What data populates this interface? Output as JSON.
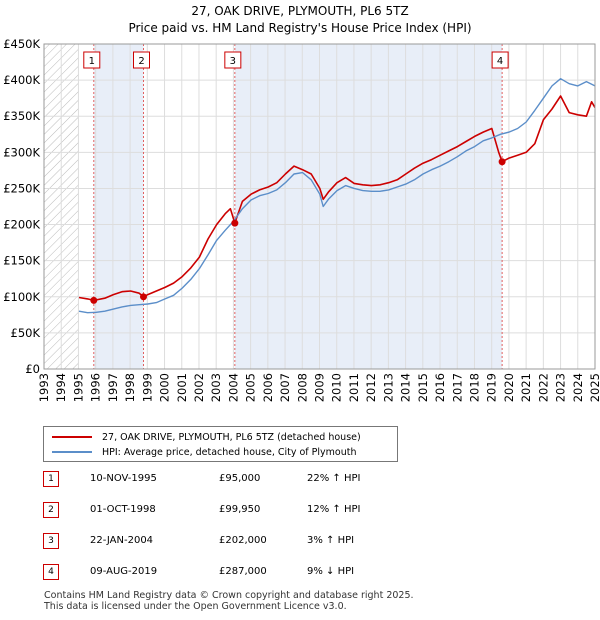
{
  "chart_data": {
    "type": "line",
    "title": "27, OAK DRIVE, PLYMOUTH, PL6 5TZ",
    "subtitle": "Price paid vs. HM Land Registry's House Price Index (HPI)",
    "xlim": [
      1993,
      2025
    ],
    "ylim": [
      0,
      450000
    ],
    "x_ticks": [
      "1993",
      "1994",
      "1995",
      "1996",
      "1997",
      "1998",
      "1999",
      "2000",
      "2001",
      "2002",
      "2003",
      "2004",
      "2005",
      "2006",
      "2007",
      "2008",
      "2009",
      "2010",
      "2011",
      "2012",
      "2013",
      "2014",
      "2015",
      "2016",
      "2017",
      "2018",
      "2019",
      "2020",
      "2021",
      "2022",
      "2023",
      "2024",
      "2025"
    ],
    "y_ticks": [
      {
        "value": 0,
        "label": "£0"
      },
      {
        "value": 50000,
        "label": "£50K"
      },
      {
        "value": 100000,
        "label": "£100K"
      },
      {
        "value": 150000,
        "label": "£150K"
      },
      {
        "value": 200000,
        "label": "£200K"
      },
      {
        "value": 250000,
        "label": "£250K"
      },
      {
        "value": 300000,
        "label": "£300K"
      },
      {
        "value": 350000,
        "label": "£350K"
      },
      {
        "value": 400000,
        "label": "£400K"
      },
      {
        "value": 450000,
        "label": "£450K"
      }
    ],
    "hatched_range": [
      1993,
      1995
    ],
    "shaded_ranges": [
      [
        1995.86,
        1998.75
      ],
      [
        2004.06,
        2019.6
      ]
    ],
    "series": [
      {
        "name": "27, OAK DRIVE, PLYMOUTH, PL6 5TZ (detached house)",
        "color": "#cc0000",
        "x": [
          1995.0,
          1995.5,
          1995.86,
          1996.5,
          1997.0,
          1997.5,
          1998.0,
          1998.5,
          1998.75,
          1999.0,
          1999.5,
          2000.0,
          2000.5,
          2001.0,
          2001.5,
          2002.0,
          2002.5,
          2003.0,
          2003.5,
          2003.8,
          2004.06,
          2004.5,
          2005.0,
          2005.5,
          2006.0,
          2006.5,
          2007.0,
          2007.5,
          2008.0,
          2008.5,
          2009.0,
          2009.2,
          2009.5,
          2010.0,
          2010.5,
          2011.0,
          2011.5,
          2012.0,
          2012.5,
          2013.0,
          2013.5,
          2014.0,
          2014.5,
          2015.0,
          2015.5,
          2016.0,
          2016.5,
          2017.0,
          2017.5,
          2018.0,
          2018.5,
          2019.0,
          2019.4,
          2019.6,
          2020.0,
          2020.5,
          2021.0,
          2021.5,
          2022.0,
          2022.5,
          2023.0,
          2023.5,
          2024.0,
          2024.5,
          2024.8,
          2025.0
        ],
        "values": [
          99000,
          97000,
          95000,
          98000,
          103000,
          107000,
          108000,
          105000,
          99950,
          103000,
          108000,
          113000,
          119000,
          128000,
          140000,
          155000,
          180000,
          200000,
          215000,
          222000,
          202000,
          232000,
          242000,
          248000,
          252000,
          258000,
          270000,
          281000,
          276000,
          270000,
          250000,
          235000,
          245000,
          258000,
          265000,
          257000,
          255000,
          254000,
          255000,
          258000,
          262000,
          270000,
          278000,
          285000,
          290000,
          296000,
          302000,
          308000,
          315000,
          322000,
          328000,
          333000,
          300000,
          287000,
          292000,
          296000,
          300000,
          312000,
          345000,
          360000,
          378000,
          355000,
          352000,
          350000,
          370000,
          362000
        ]
      },
      {
        "name": "HPI: Average price, detached house, City of Plymouth",
        "color": "#5b8ec9",
        "x": [
          1995.0,
          1995.5,
          1996.0,
          1996.5,
          1997.0,
          1997.5,
          1998.0,
          1998.5,
          1999.0,
          1999.5,
          2000.0,
          2000.5,
          2001.0,
          2001.5,
          2002.0,
          2002.5,
          2003.0,
          2003.5,
          2004.0,
          2004.5,
          2005.0,
          2005.5,
          2006.0,
          2006.5,
          2007.0,
          2007.5,
          2008.0,
          2008.5,
          2009.0,
          2009.2,
          2009.5,
          2010.0,
          2010.5,
          2011.0,
          2011.5,
          2012.0,
          2012.5,
          2013.0,
          2013.5,
          2014.0,
          2014.5,
          2015.0,
          2015.5,
          2016.0,
          2016.5,
          2017.0,
          2017.5,
          2018.0,
          2018.5,
          2019.0,
          2019.5,
          2020.0,
          2020.5,
          2021.0,
          2021.5,
          2022.0,
          2022.5,
          2023.0,
          2023.5,
          2024.0,
          2024.5,
          2025.0
        ],
        "values": [
          80000,
          78000,
          78500,
          80000,
          83000,
          86000,
          88000,
          89000,
          90000,
          92000,
          97000,
          102000,
          112000,
          124000,
          139000,
          158000,
          178000,
          192000,
          205000,
          222000,
          234000,
          240000,
          243000,
          248000,
          258000,
          270000,
          272000,
          262000,
          242000,
          225000,
          235000,
          247000,
          254000,
          250000,
          247000,
          246000,
          246000,
          248000,
          252000,
          256000,
          262000,
          270000,
          276000,
          281000,
          287000,
          294000,
          302000,
          308000,
          316000,
          320000,
          325000,
          328000,
          333000,
          342000,
          358000,
          375000,
          392000,
          402000,
          395000,
          392000,
          398000,
          392000
        ]
      }
    ],
    "sales": [
      {
        "label": "1",
        "x": 1995.86,
        "value": 95000,
        "date": "10-NOV-1995",
        "price": "£95,000",
        "hpi_diff": "22% ↑ HPI"
      },
      {
        "label": "2",
        "x": 1998.75,
        "value": 99950,
        "date": "01-OCT-1998",
        "price": "£99,950",
        "hpi_diff": "12% ↑ HPI"
      },
      {
        "label": "3",
        "x": 2004.06,
        "value": 202000,
        "date": "22-JAN-2004",
        "price": "£202,000",
        "hpi_diff": "3% ↑ HPI"
      },
      {
        "label": "4",
        "x": 2019.6,
        "value": 287000,
        "date": "09-AUG-2019",
        "price": "£287,000",
        "hpi_diff": "9% ↓ HPI"
      }
    ]
  },
  "legend": {
    "property_label": "27, OAK DRIVE, PLYMOUTH, PL6 5TZ (detached house)",
    "hpi_label": "HPI: Average price, detached house, City of Plymouth",
    "property_color": "#cc0000",
    "hpi_color": "#5b8ec9"
  },
  "footer": {
    "line1": "Contains HM Land Registry data © Crown copyright and database right 2025.",
    "line2": "This data is licensed under the Open Government Licence v3.0."
  }
}
